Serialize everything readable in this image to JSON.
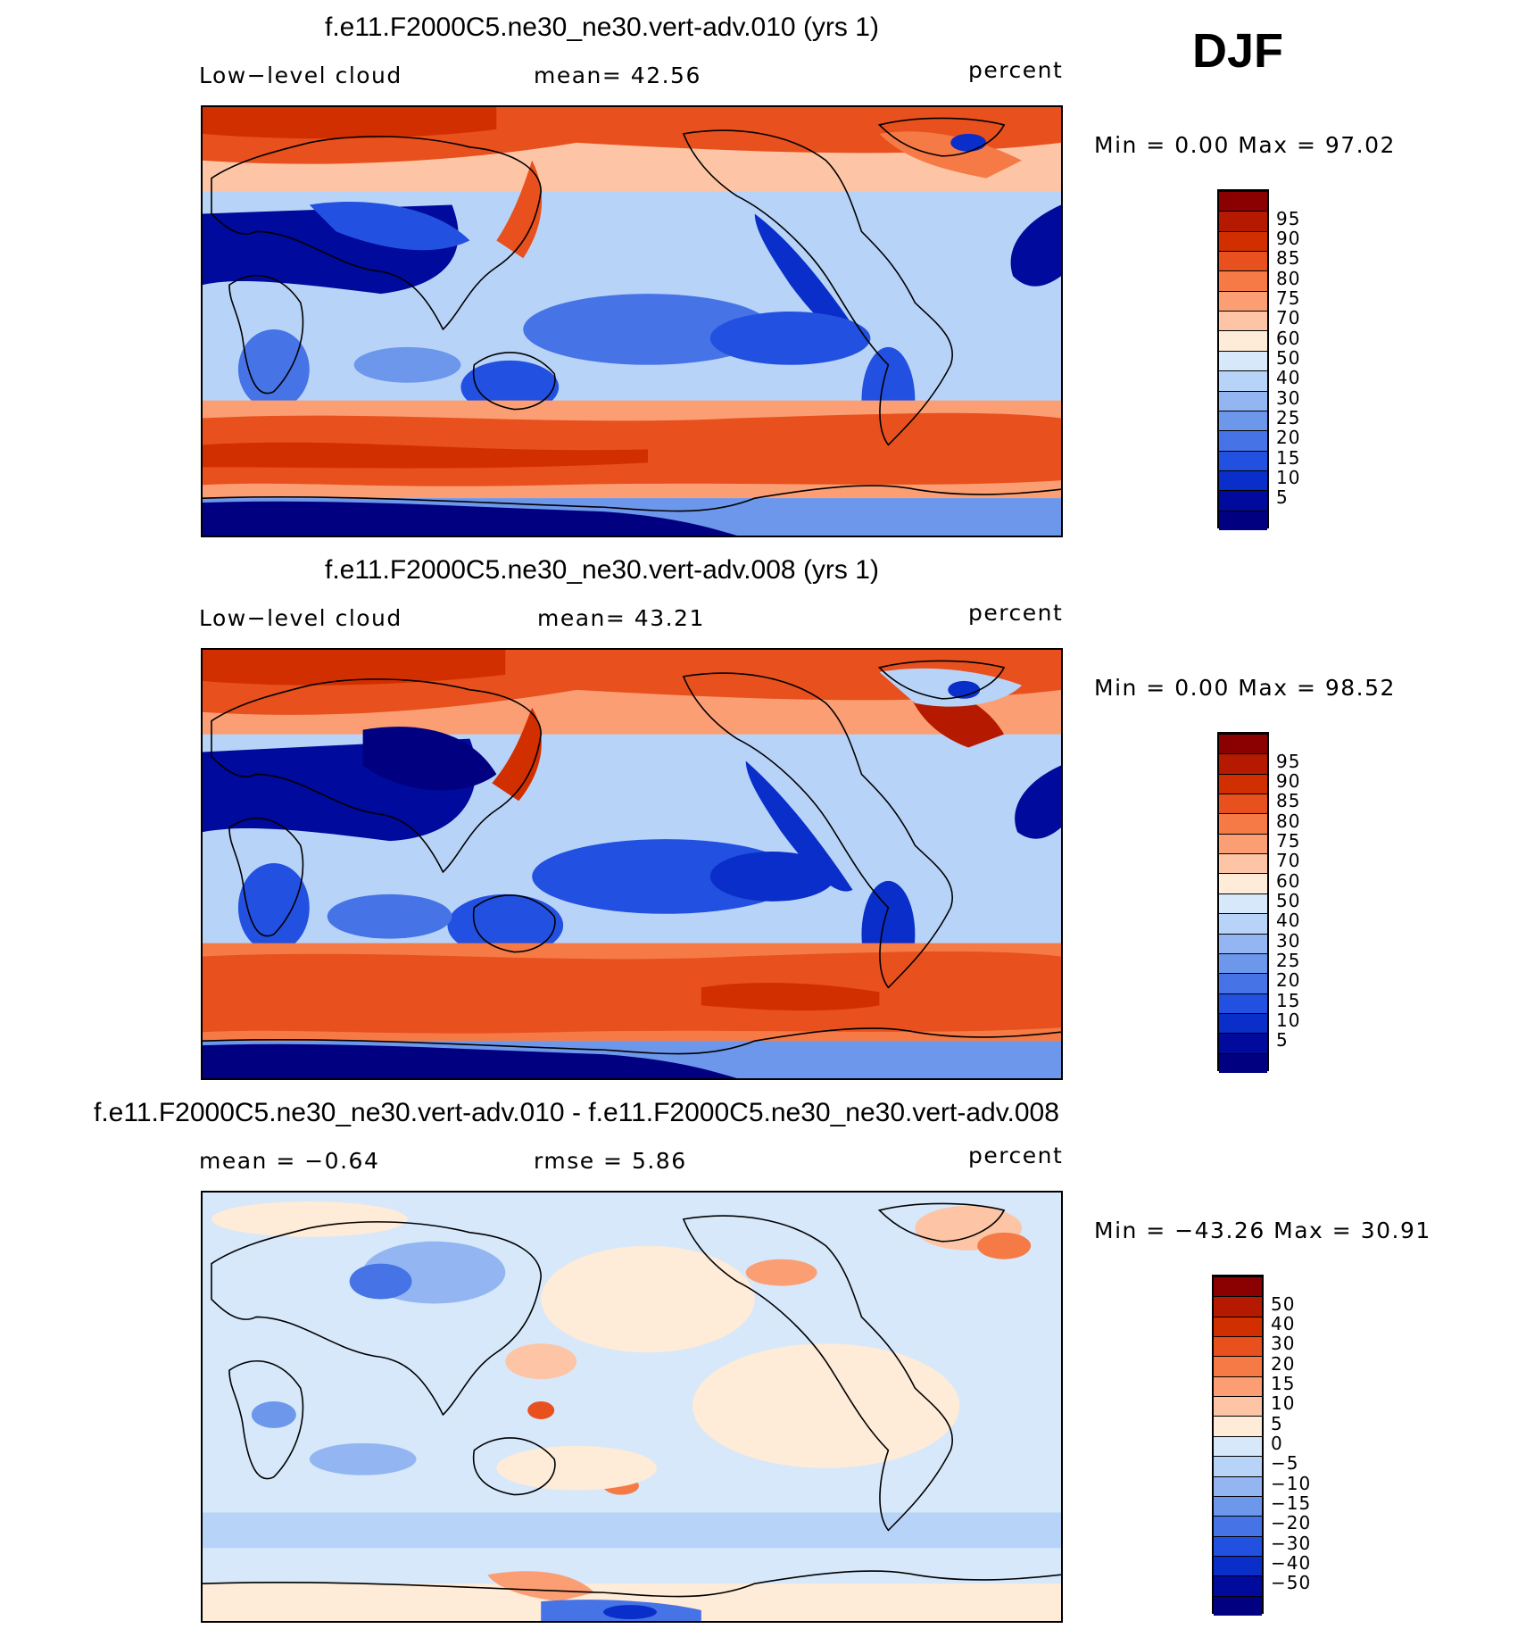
{
  "season": "DJF",
  "panels": [
    {
      "title": "f.e11.F2000C5.ne30_ne30.vert-adv.010 (yrs 1)",
      "left_label": "Low−level cloud",
      "center_label": "mean=   42.56",
      "right_label": "percent",
      "minmax": "Min =     0.00 Max =    97.02",
      "colorbar": {
        "colors": [
          "#8b0000",
          "#b51a00",
          "#d22f00",
          "#e8501d",
          "#f57a45",
          "#fb9e73",
          "#fdc5a5",
          "#feebd8",
          "#d6e8fa",
          "#b8d3f8",
          "#93b6f2",
          "#6c97eb",
          "#4673e6",
          "#2250e0",
          "#0a2eca",
          "#000a9c",
          "#000080"
        ],
        "labels": [
          "95",
          "90",
          "85",
          "80",
          "75",
          "70",
          "60",
          "50",
          "40",
          "30",
          "25",
          "20",
          "15",
          "10",
          "5"
        ]
      }
    },
    {
      "title": "f.e11.F2000C5.ne30_ne30.vert-adv.008 (yrs 1)",
      "left_label": "Low−level cloud",
      "center_label": "mean=   43.21",
      "right_label": "percent",
      "minmax": "Min =     0.00 Max =    98.52",
      "colorbar": {
        "colors": [
          "#8b0000",
          "#b51a00",
          "#d22f00",
          "#e8501d",
          "#f57a45",
          "#fb9e73",
          "#fdc5a5",
          "#feebd8",
          "#d6e8fa",
          "#b8d3f8",
          "#93b6f2",
          "#6c97eb",
          "#4673e6",
          "#2250e0",
          "#0a2eca",
          "#000a9c",
          "#000080"
        ],
        "labels": [
          "95",
          "90",
          "85",
          "80",
          "75",
          "70",
          "60",
          "50",
          "40",
          "30",
          "25",
          "20",
          "15",
          "10",
          "5"
        ]
      }
    },
    {
      "title": "f.e11.F2000C5.ne30_ne30.vert-adv.010 - f.e11.F2000C5.ne30_ne30.vert-adv.008",
      "left_label": "mean =   −0.64",
      "center_label": "rmse =    5.86",
      "right_label": "percent",
      "minmax": "Min = −43.26 Max =   30.91",
      "colorbar": {
        "colors": [
          "#8b0000",
          "#b51a00",
          "#d22f00",
          "#e8501d",
          "#f57a45",
          "#fb9e73",
          "#fdc5a5",
          "#feebd8",
          "#d6e8fa",
          "#b8d3f8",
          "#93b6f2",
          "#6c97eb",
          "#4673e6",
          "#2250e0",
          "#0a2eca",
          "#000a9c",
          "#000080"
        ],
        "labels": [
          "50",
          "40",
          "30",
          "20",
          "15",
          "10",
          "5",
          "0",
          "−5",
          "−10",
          "−15",
          "−20",
          "−30",
          "−40",
          "−50"
        ]
      }
    }
  ]
}
